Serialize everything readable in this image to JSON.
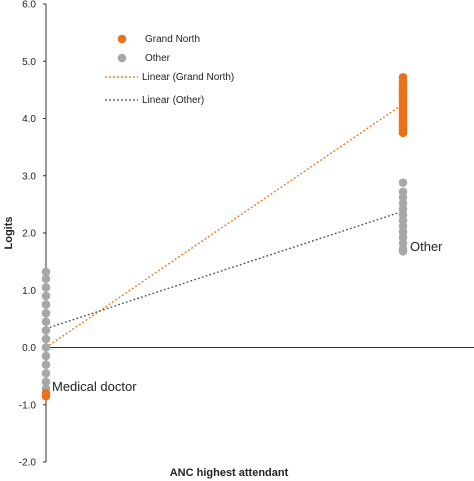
{
  "chart_data": {
    "type": "scatter",
    "title": "",
    "xlabel": "ANC highest attendant",
    "ylabel": "Logits",
    "ylim": [
      -2.0,
      6.0
    ],
    "yticks": [
      "-2.0",
      "-1.0",
      "0.0",
      "1.0",
      "2.0",
      "3.0",
      "4.0",
      "5.0",
      "6.0"
    ],
    "grid": false,
    "legend_position": "top-left",
    "category_labels": [
      "Medical doctor",
      "Other"
    ],
    "series": [
      {
        "name": "Grand North",
        "color": "#e8711a",
        "marker": "circle",
        "points": [
          {
            "x": 0,
            "y": -0.8
          },
          {
            "x": 0,
            "y": -0.85
          },
          {
            "x": 1,
            "y": 3.75
          },
          {
            "x": 1,
            "y": 3.8
          },
          {
            "x": 1,
            "y": 3.85
          },
          {
            "x": 1,
            "y": 3.9
          },
          {
            "x": 1,
            "y": 3.95
          },
          {
            "x": 1,
            "y": 4.0
          },
          {
            "x": 1,
            "y": 4.05
          },
          {
            "x": 1,
            "y": 4.1
          },
          {
            "x": 1,
            "y": 4.15
          },
          {
            "x": 1,
            "y": 4.2
          },
          {
            "x": 1,
            "y": 4.25
          },
          {
            "x": 1,
            "y": 4.3
          },
          {
            "x": 1,
            "y": 4.35
          },
          {
            "x": 1,
            "y": 4.4
          },
          {
            "x": 1,
            "y": 4.45
          },
          {
            "x": 1,
            "y": 4.5
          },
          {
            "x": 1,
            "y": 4.55
          },
          {
            "x": 1,
            "y": 4.6
          },
          {
            "x": 1,
            "y": 4.65
          },
          {
            "x": 1,
            "y": 4.72
          }
        ]
      },
      {
        "name": "Other",
        "color": "#a4a9a8",
        "marker": "circle",
        "points": [
          {
            "x": 0,
            "y": 1.32
          },
          {
            "x": 0,
            "y": 1.2
          },
          {
            "x": 0,
            "y": 1.05
          },
          {
            "x": 0,
            "y": 0.9
          },
          {
            "x": 0,
            "y": 0.75
          },
          {
            "x": 0,
            "y": 0.6
          },
          {
            "x": 0,
            "y": 0.45
          },
          {
            "x": 0,
            "y": 0.3
          },
          {
            "x": 0,
            "y": 0.15
          },
          {
            "x": 0,
            "y": 0.0
          },
          {
            "x": 0,
            "y": -0.15
          },
          {
            "x": 0,
            "y": -0.3
          },
          {
            "x": 0,
            "y": -0.45
          },
          {
            "x": 0,
            "y": -0.6
          },
          {
            "x": 0,
            "y": -0.72
          },
          {
            "x": 1,
            "y": 2.88
          },
          {
            "x": 1,
            "y": 2.72
          },
          {
            "x": 1,
            "y": 2.62
          },
          {
            "x": 1,
            "y": 2.52
          },
          {
            "x": 1,
            "y": 2.42
          },
          {
            "x": 1,
            "y": 2.32
          },
          {
            "x": 1,
            "y": 2.22
          },
          {
            "x": 1,
            "y": 2.12
          },
          {
            "x": 1,
            "y": 2.02
          },
          {
            "x": 1,
            "y": 1.92
          },
          {
            "x": 1,
            "y": 1.82
          },
          {
            "x": 1,
            "y": 1.72
          },
          {
            "x": 1,
            "y": 1.68
          }
        ]
      },
      {
        "name": "Linear (Grand North)",
        "color": "#e8711a",
        "style": "dotted",
        "type": "line",
        "points": [
          {
            "x": 0,
            "y": 0.0
          },
          {
            "x": 1,
            "y": 4.25
          }
        ]
      },
      {
        "name": "Linear (Other)",
        "color": "#555555",
        "style": "dotted",
        "type": "line",
        "points": [
          {
            "x": 0,
            "y": 0.33
          },
          {
            "x": 1,
            "y": 2.38
          }
        ]
      }
    ]
  }
}
